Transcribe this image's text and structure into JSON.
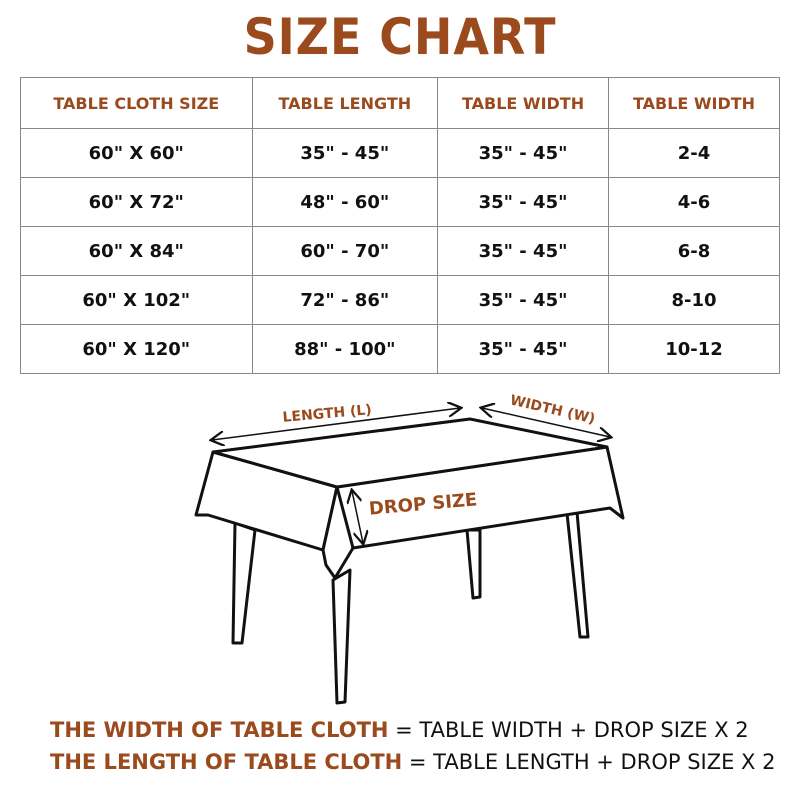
{
  "title": "SIZE CHART",
  "accent_color": "#9a4a1c",
  "table": {
    "headers": [
      "TABLE CLOTH SIZE",
      "TABLE LENGTH",
      "TABLE WIDTH",
      "TABLE WIDTH"
    ],
    "rows": [
      [
        "60\" X 60\"",
        "35\" - 45\"",
        "35\" - 45\"",
        "2-4"
      ],
      [
        "60\" X 72\"",
        "48\" - 60\"",
        "35\" - 45\"",
        "4-6"
      ],
      [
        "60\" X 84\"",
        "60\" - 70\"",
        "35\" - 45\"",
        "6-8"
      ],
      [
        "60\" X 102\"",
        "72\" - 86\"",
        "35\" - 45\"",
        "8-10"
      ],
      [
        "60\" X 120\"",
        "88\" - 100\"",
        "35\" - 45\"",
        "10-12"
      ]
    ]
  },
  "diagram": {
    "length_label": "LENGTH (L)",
    "width_label": "WIDTH (W)",
    "drop_label": "DROP SIZE"
  },
  "formulas": [
    {
      "term": "THE WIDTH OF TABLE CLOTH",
      "rest": " = TABLE WIDTH + DROP SIZE X 2"
    },
    {
      "term": "THE LENGTH OF TABLE CLOTH",
      "rest": " = TABLE LENGTH + DROP SIZE X 2"
    }
  ]
}
